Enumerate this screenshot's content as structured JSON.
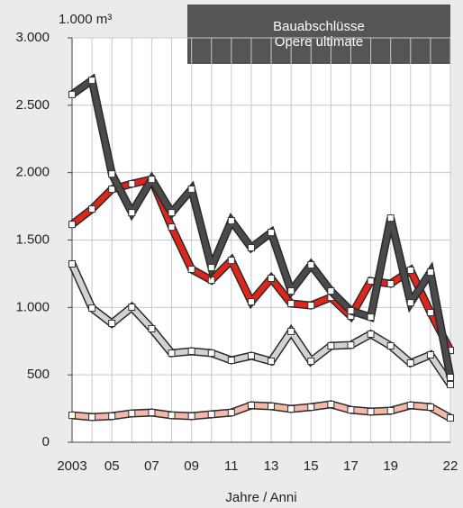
{
  "chart_data": {
    "type": "line",
    "title": "Bauabschlüsse\nOpere ultimate",
    "y_label": "1.000 m³",
    "x_label": "Jahre / Anni",
    "categories": [
      "2003",
      null,
      "05",
      null,
      "07",
      null,
      "09",
      null,
      "11",
      null,
      "13",
      null,
      "15",
      null,
      "17",
      null,
      "19",
      null,
      null,
      "22"
    ],
    "series": [
      {
        "color": "#f4b8a8",
        "values": [
          200,
          187,
          194,
          214,
          220,
          200,
          194,
          207,
          220,
          274,
          267,
          247,
          261,
          281,
          240,
          227,
          234,
          274,
          261,
          180
        ]
      },
      {
        "color": "#d2d2d2",
        "values": [
          1323,
          995,
          882,
          1002,
          842,
          661,
          675,
          661,
          608,
          641,
          601,
          822,
          601,
          715,
          721,
          802,
          715,
          588,
          648,
          428
        ]
      },
      {
        "color": "#e0251b",
        "values": [
          1616,
          1730,
          1877,
          1917,
          1950,
          1596,
          1283,
          1202,
          1349,
          1042,
          1216,
          1029,
          1015,
          1075,
          935,
          1196,
          1176,
          1276,
          962,
          681
        ]
      },
      {
        "color": "#4a4a4a",
        "values": [
          2580,
          2685,
          1990,
          1703,
          1950,
          1703,
          1877,
          1296,
          1643,
          1443,
          1556,
          1122,
          1316,
          1122,
          975,
          928,
          1663,
          1035,
          1262,
          481
        ]
      }
    ],
    "ylim": [
      0,
      3000
    ],
    "yticks": [
      0,
      500,
      {
        "value": 1000,
        "label": "1.000"
      },
      {
        "value": 1500,
        "label": "1.500"
      },
      {
        "value": 2000,
        "label": "2.000"
      },
      {
        "value": 2500,
        "label": "2.500"
      },
      {
        "value": 3000,
        "label": "3.000"
      }
    ],
    "grid": true
  }
}
